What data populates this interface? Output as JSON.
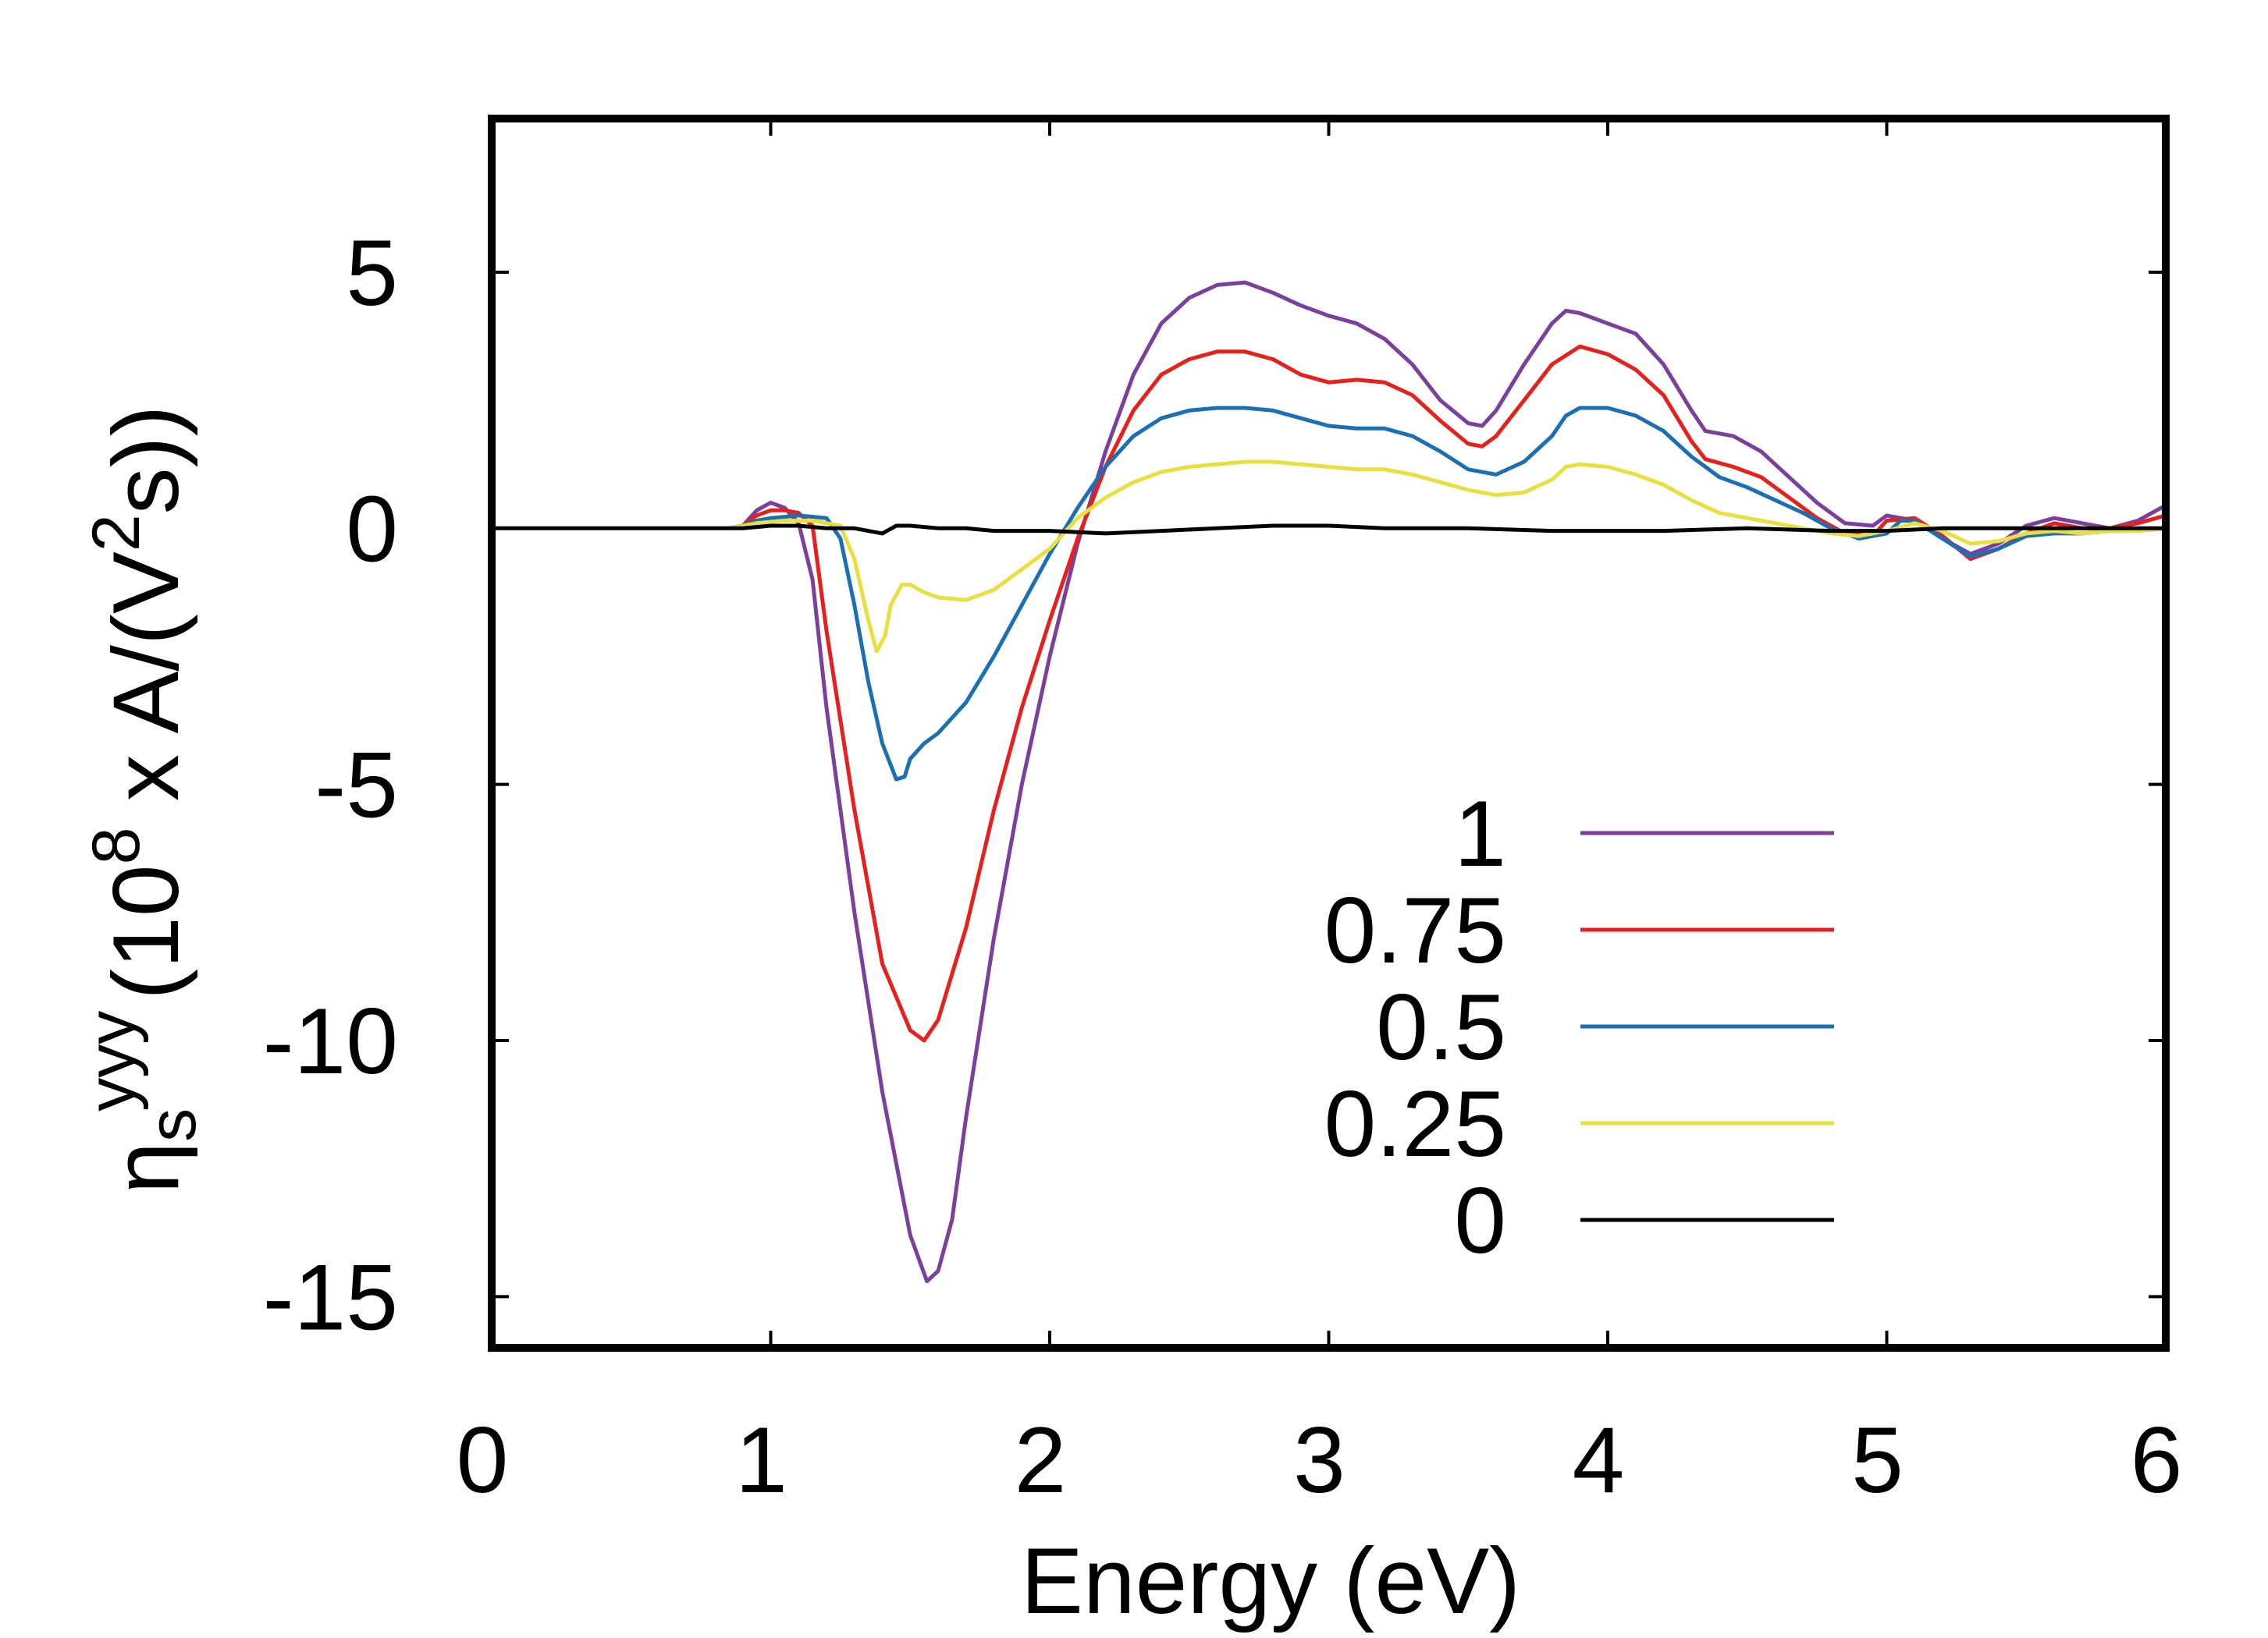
{
  "chart_data": {
    "type": "line",
    "title": "",
    "xlabel": "Energy (eV)",
    "ylabel": {
      "eta": "η",
      "sub": "s",
      "sup": "yyy",
      "pre": "(10",
      "exp": "8",
      "mid": " x A/(V",
      "exp2": "2",
      "post": "s))"
    },
    "xlim": [
      0,
      6
    ],
    "ylim": [
      -16,
      8
    ],
    "xticks": [
      0,
      1,
      2,
      3,
      4,
      5,
      6
    ],
    "xtick_labels": [
      "0",
      "1",
      "2",
      "3",
      "4",
      "5",
      "6"
    ],
    "yticks": [
      -15,
      -10,
      -5,
      0,
      5
    ],
    "ytick_labels": [
      "-15",
      "-10",
      "-5",
      "0",
      "5"
    ],
    "grid": false,
    "legend_position": "lower-right",
    "series": [
      {
        "name": "1",
        "color": "#7b3f9e",
        "points": [
          [
            0.85,
            0.0
          ],
          [
            0.9,
            0.05
          ],
          [
            0.95,
            0.35
          ],
          [
            1.0,
            0.5
          ],
          [
            1.05,
            0.4
          ],
          [
            1.1,
            0.1
          ],
          [
            1.15,
            -1.0
          ],
          [
            1.2,
            -3.5
          ],
          [
            1.3,
            -7.5
          ],
          [
            1.4,
            -11.0
          ],
          [
            1.5,
            -13.8
          ],
          [
            1.56,
            -14.7
          ],
          [
            1.6,
            -14.5
          ],
          [
            1.65,
            -13.5
          ],
          [
            1.7,
            -11.5
          ],
          [
            1.8,
            -8.0
          ],
          [
            1.9,
            -5.0
          ],
          [
            2.0,
            -2.5
          ],
          [
            2.1,
            -0.3
          ],
          [
            2.2,
            1.5
          ],
          [
            2.3,
            3.0
          ],
          [
            2.4,
            4.0
          ],
          [
            2.5,
            4.5
          ],
          [
            2.6,
            4.75
          ],
          [
            2.7,
            4.8
          ],
          [
            2.8,
            4.6
          ],
          [
            2.9,
            4.35
          ],
          [
            3.0,
            4.15
          ],
          [
            3.1,
            4.0
          ],
          [
            3.2,
            3.7
          ],
          [
            3.3,
            3.2
          ],
          [
            3.4,
            2.5
          ],
          [
            3.5,
            2.05
          ],
          [
            3.55,
            2.0
          ],
          [
            3.6,
            2.3
          ],
          [
            3.7,
            3.2
          ],
          [
            3.8,
            4.0
          ],
          [
            3.85,
            4.25
          ],
          [
            3.9,
            4.2
          ],
          [
            4.0,
            4.0
          ],
          [
            4.1,
            3.8
          ],
          [
            4.2,
            3.2
          ],
          [
            4.3,
            2.3
          ],
          [
            4.35,
            1.9
          ],
          [
            4.45,
            1.8
          ],
          [
            4.55,
            1.5
          ],
          [
            4.65,
            1.0
          ],
          [
            4.75,
            0.5
          ],
          [
            4.85,
            0.1
          ],
          [
            4.95,
            0.05
          ],
          [
            5.0,
            0.25
          ],
          [
            5.1,
            0.15
          ],
          [
            5.2,
            -0.2
          ],
          [
            5.3,
            -0.5
          ],
          [
            5.4,
            -0.3
          ],
          [
            5.5,
            0.05
          ],
          [
            5.6,
            0.2
          ],
          [
            5.7,
            0.1
          ],
          [
            5.8,
            0.0
          ],
          [
            5.9,
            0.15
          ],
          [
            6.0,
            0.45
          ]
        ]
      },
      {
        "name": "0.75",
        "color": "#e8201c",
        "points": [
          [
            0.85,
            0.0
          ],
          [
            0.9,
            0.05
          ],
          [
            0.95,
            0.25
          ],
          [
            1.0,
            0.35
          ],
          [
            1.05,
            0.35
          ],
          [
            1.1,
            0.3
          ],
          [
            1.15,
            0.05
          ],
          [
            1.2,
            -2.0
          ],
          [
            1.3,
            -5.5
          ],
          [
            1.4,
            -8.5
          ],
          [
            1.5,
            -9.8
          ],
          [
            1.55,
            -10.0
          ],
          [
            1.6,
            -9.6
          ],
          [
            1.7,
            -7.8
          ],
          [
            1.8,
            -5.5
          ],
          [
            1.9,
            -3.5
          ],
          [
            2.0,
            -1.8
          ],
          [
            2.1,
            -0.2
          ],
          [
            2.2,
            1.2
          ],
          [
            2.3,
            2.3
          ],
          [
            2.4,
            3.0
          ],
          [
            2.5,
            3.3
          ],
          [
            2.6,
            3.45
          ],
          [
            2.7,
            3.45
          ],
          [
            2.8,
            3.3
          ],
          [
            2.9,
            3.0
          ],
          [
            3.0,
            2.85
          ],
          [
            3.1,
            2.9
          ],
          [
            3.2,
            2.85
          ],
          [
            3.3,
            2.6
          ],
          [
            3.4,
            2.1
          ],
          [
            3.5,
            1.65
          ],
          [
            3.55,
            1.6
          ],
          [
            3.6,
            1.8
          ],
          [
            3.7,
            2.5
          ],
          [
            3.8,
            3.2
          ],
          [
            3.9,
            3.55
          ],
          [
            4.0,
            3.4
          ],
          [
            4.1,
            3.1
          ],
          [
            4.2,
            2.6
          ],
          [
            4.3,
            1.7
          ],
          [
            4.35,
            1.35
          ],
          [
            4.45,
            1.2
          ],
          [
            4.55,
            1.0
          ],
          [
            4.65,
            0.6
          ],
          [
            4.75,
            0.2
          ],
          [
            4.85,
            -0.1
          ],
          [
            4.95,
            -0.15
          ],
          [
            5.0,
            0.15
          ],
          [
            5.1,
            0.2
          ],
          [
            5.2,
            -0.15
          ],
          [
            5.3,
            -0.6
          ],
          [
            5.4,
            -0.4
          ],
          [
            5.5,
            -0.1
          ],
          [
            5.6,
            0.1
          ],
          [
            5.7,
            0.0
          ],
          [
            5.8,
            0.0
          ],
          [
            5.9,
            0.1
          ],
          [
            6.0,
            0.25
          ]
        ]
      },
      {
        "name": "0.5",
        "color": "#1a6fb5",
        "points": [
          [
            0.85,
            0.0
          ],
          [
            0.9,
            0.05
          ],
          [
            0.95,
            0.15
          ],
          [
            1.0,
            0.2
          ],
          [
            1.1,
            0.25
          ],
          [
            1.2,
            0.2
          ],
          [
            1.25,
            -0.2
          ],
          [
            1.3,
            -1.5
          ],
          [
            1.35,
            -3.0
          ],
          [
            1.4,
            -4.2
          ],
          [
            1.45,
            -4.9
          ],
          [
            1.48,
            -4.85
          ],
          [
            1.5,
            -4.5
          ],
          [
            1.55,
            -4.2
          ],
          [
            1.6,
            -4.0
          ],
          [
            1.7,
            -3.4
          ],
          [
            1.8,
            -2.5
          ],
          [
            1.9,
            -1.5
          ],
          [
            2.0,
            -0.5
          ],
          [
            2.1,
            0.4
          ],
          [
            2.2,
            1.2
          ],
          [
            2.3,
            1.8
          ],
          [
            2.4,
            2.15
          ],
          [
            2.5,
            2.3
          ],
          [
            2.6,
            2.35
          ],
          [
            2.7,
            2.35
          ],
          [
            2.8,
            2.3
          ],
          [
            2.9,
            2.15
          ],
          [
            3.0,
            2.0
          ],
          [
            3.1,
            1.95
          ],
          [
            3.2,
            1.95
          ],
          [
            3.3,
            1.8
          ],
          [
            3.4,
            1.5
          ],
          [
            3.5,
            1.15
          ],
          [
            3.6,
            1.05
          ],
          [
            3.7,
            1.3
          ],
          [
            3.8,
            1.8
          ],
          [
            3.85,
            2.2
          ],
          [
            3.9,
            2.35
          ],
          [
            4.0,
            2.35
          ],
          [
            4.1,
            2.2
          ],
          [
            4.2,
            1.9
          ],
          [
            4.3,
            1.4
          ],
          [
            4.4,
            1.0
          ],
          [
            4.5,
            0.8
          ],
          [
            4.6,
            0.55
          ],
          [
            4.7,
            0.3
          ],
          [
            4.8,
            0.0
          ],
          [
            4.9,
            -0.2
          ],
          [
            5.0,
            -0.1
          ],
          [
            5.05,
            0.15
          ],
          [
            5.1,
            0.15
          ],
          [
            5.2,
            -0.2
          ],
          [
            5.3,
            -0.55
          ],
          [
            5.4,
            -0.4
          ],
          [
            5.5,
            -0.15
          ],
          [
            5.6,
            -0.1
          ],
          [
            5.7,
            -0.1
          ],
          [
            5.8,
            -0.05
          ],
          [
            5.9,
            -0.05
          ],
          [
            6.0,
            0.0
          ]
        ]
      },
      {
        "name": "0.25",
        "color": "#e8e040",
        "points": [
          [
            0.85,
            0.0
          ],
          [
            0.95,
            0.1
          ],
          [
            1.05,
            0.15
          ],
          [
            1.15,
            0.15
          ],
          [
            1.25,
            0.05
          ],
          [
            1.3,
            -0.6
          ],
          [
            1.35,
            -1.8
          ],
          [
            1.38,
            -2.4
          ],
          [
            1.41,
            -2.1
          ],
          [
            1.43,
            -1.5
          ],
          [
            1.47,
            -1.1
          ],
          [
            1.5,
            -1.1
          ],
          [
            1.55,
            -1.25
          ],
          [
            1.6,
            -1.35
          ],
          [
            1.7,
            -1.4
          ],
          [
            1.8,
            -1.2
          ],
          [
            1.9,
            -0.8
          ],
          [
            2.0,
            -0.4
          ],
          [
            2.1,
            0.2
          ],
          [
            2.2,
            0.6
          ],
          [
            2.3,
            0.9
          ],
          [
            2.4,
            1.1
          ],
          [
            2.5,
            1.2
          ],
          [
            2.6,
            1.25
          ],
          [
            2.7,
            1.3
          ],
          [
            2.8,
            1.3
          ],
          [
            2.9,
            1.25
          ],
          [
            3.0,
            1.2
          ],
          [
            3.1,
            1.15
          ],
          [
            3.2,
            1.15
          ],
          [
            3.3,
            1.05
          ],
          [
            3.4,
            0.9
          ],
          [
            3.5,
            0.75
          ],
          [
            3.6,
            0.65
          ],
          [
            3.7,
            0.7
          ],
          [
            3.8,
            0.95
          ],
          [
            3.85,
            1.2
          ],
          [
            3.9,
            1.25
          ],
          [
            4.0,
            1.2
          ],
          [
            4.1,
            1.05
          ],
          [
            4.2,
            0.85
          ],
          [
            4.3,
            0.55
          ],
          [
            4.4,
            0.3
          ],
          [
            4.5,
            0.2
          ],
          [
            4.6,
            0.1
          ],
          [
            4.7,
            0.0
          ],
          [
            4.8,
            -0.1
          ],
          [
            4.9,
            -0.15
          ],
          [
            5.0,
            -0.05
          ],
          [
            5.1,
            0.1
          ],
          [
            5.2,
            -0.05
          ],
          [
            5.3,
            -0.3
          ],
          [
            5.4,
            -0.25
          ],
          [
            5.5,
            -0.1
          ],
          [
            5.6,
            -0.05
          ],
          [
            5.7,
            -0.1
          ],
          [
            5.8,
            -0.05
          ],
          [
            5.9,
            -0.05
          ],
          [
            6.0,
            0.0
          ]
        ]
      },
      {
        "name": "0",
        "color": "#000000",
        "points": [
          [
            0.0,
            0.0
          ],
          [
            0.9,
            0.0
          ],
          [
            1.0,
            0.05
          ],
          [
            1.1,
            0.05
          ],
          [
            1.2,
            0.0
          ],
          [
            1.3,
            0.0
          ],
          [
            1.4,
            -0.1
          ],
          [
            1.45,
            0.05
          ],
          [
            1.5,
            0.05
          ],
          [
            1.6,
            0.0
          ],
          [
            1.7,
            0.0
          ],
          [
            1.8,
            -0.05
          ],
          [
            2.0,
            -0.05
          ],
          [
            2.2,
            -0.1
          ],
          [
            2.4,
            -0.05
          ],
          [
            2.6,
            0.0
          ],
          [
            2.8,
            0.05
          ],
          [
            3.0,
            0.05
          ],
          [
            3.2,
            0.0
          ],
          [
            3.5,
            0.0
          ],
          [
            3.8,
            -0.05
          ],
          [
            4.2,
            -0.05
          ],
          [
            4.5,
            0.0
          ],
          [
            4.8,
            -0.05
          ],
          [
            5.0,
            -0.05
          ],
          [
            5.2,
            0.0
          ],
          [
            5.5,
            0.0
          ],
          [
            5.8,
            0.0
          ],
          [
            6.0,
            0.0
          ]
        ]
      }
    ]
  }
}
